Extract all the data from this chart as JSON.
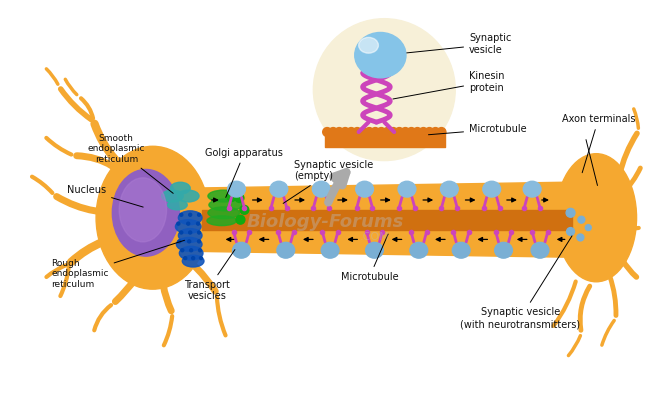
{
  "bg_color": "#ffffff",
  "soma_color": "#F5A830",
  "axon_color": "#F5A830",
  "nucleus_color": "#9B6CC8",
  "rough_er_color": "#2266CC",
  "smooth_er_color": "#44BBBB",
  "golgi_color": "#33AA33",
  "vesicle_empty_color": "#88BBDD",
  "vesicle_full_color": "#7AAFD4",
  "kinesin_color": "#CC44BB",
  "microtubule_fill": "#E07818",
  "inset_bg": "#F7F0D8",
  "inset_border": "#C8B888",
  "arrow_gray": "#999999",
  "label_color": "#111111",
  "watermark": "Biology-Forums",
  "watermark_color": "#bbbbbb",
  "labels": {
    "nucleus": "Nucleus",
    "smooth_endo": "Smooth\nendoplasmic\nreticulum",
    "rough_endo": "Rough\nendoplasmic\nreticulum",
    "golgi": "Golgi apparatus",
    "synaptic_empty": "Synaptic vesicle\n(empty)",
    "transport": "Transport\nvesicles",
    "microtubule_label": "Microtubule",
    "axon_terminals": "Axon terminals",
    "synaptic_full": "Synaptic vesicle\n(with neurotransmitters)",
    "inset_vesicle": "Synaptic\nvesicle",
    "inset_kinesin": "Kinesin\nprotein",
    "inset_microtubule": "Microtubule"
  }
}
